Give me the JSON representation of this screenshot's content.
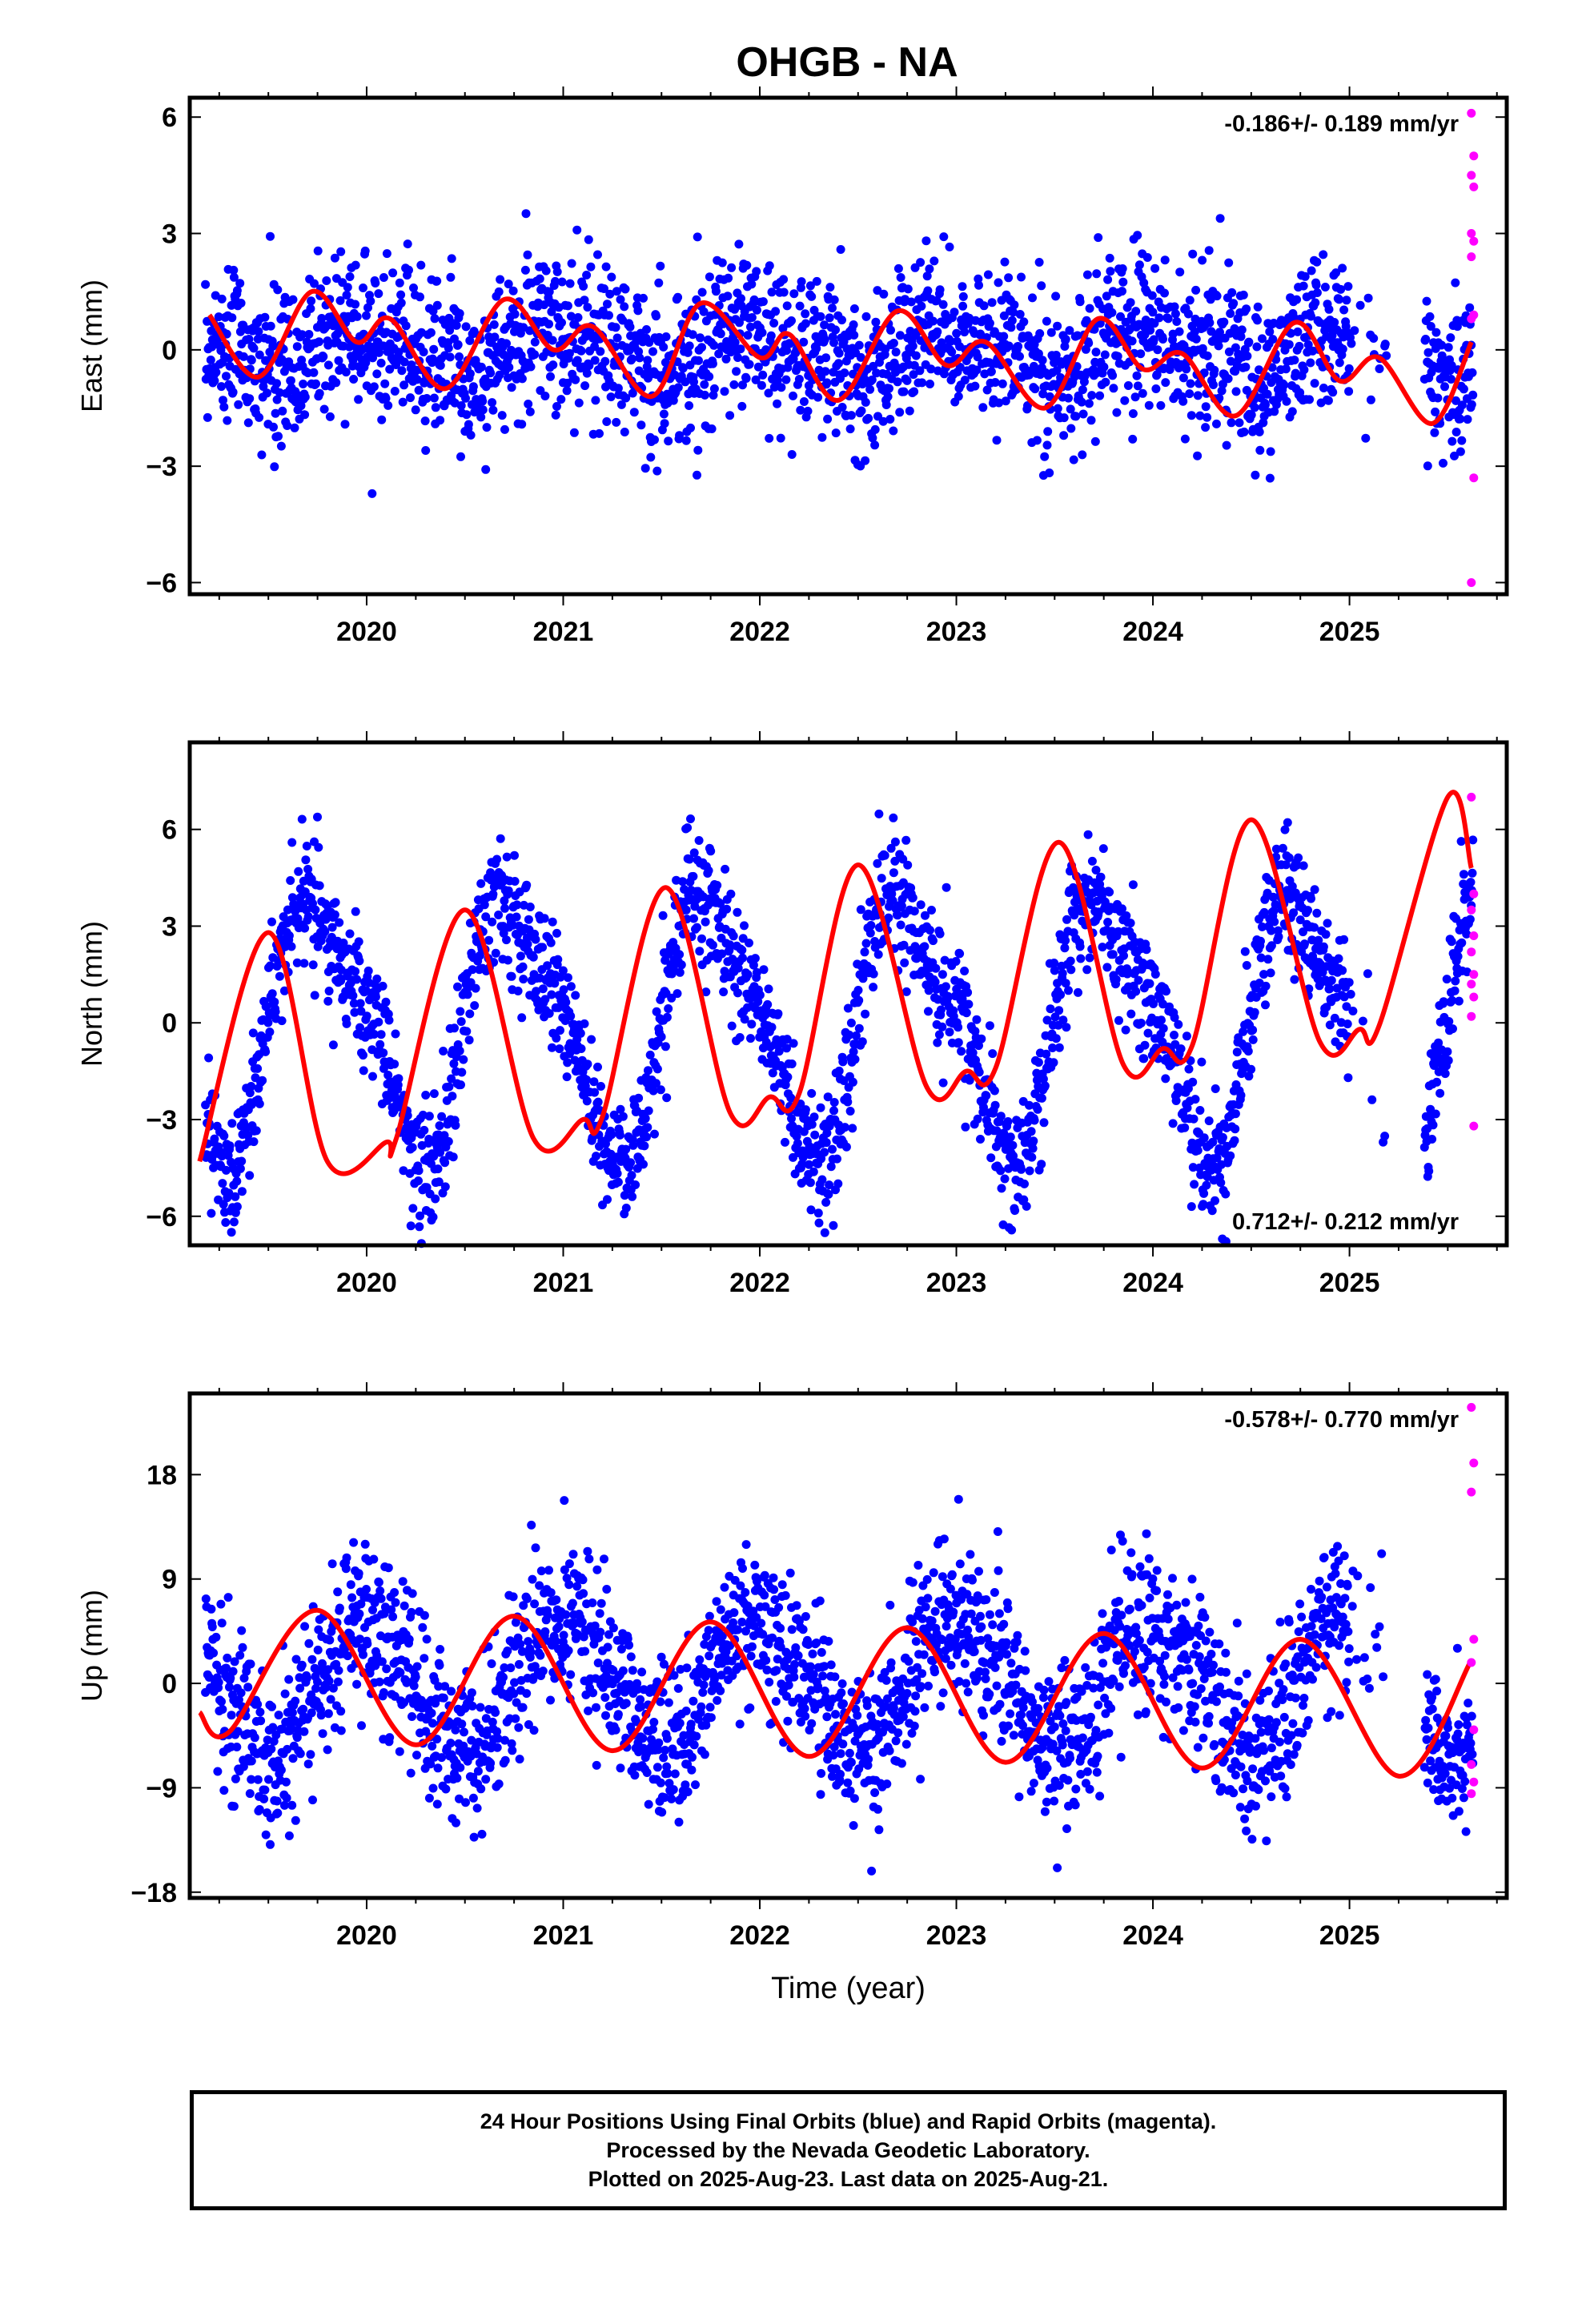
{
  "chart_data": [
    {
      "type": "scatter",
      "title": "OHGB - NA",
      "ylabel": "East (mm)",
      "xlabel": "",
      "xlim": [
        2019.1,
        2025.8
      ],
      "ylim": [
        -6.3,
        6.5
      ],
      "yticks": [
        6,
        3,
        0,
        -3,
        -6
      ],
      "ytick_labels": [
        "6",
        "3",
        "0",
        "−3",
        "−6"
      ],
      "xticks": [
        2020,
        2021,
        2022,
        2023,
        2024,
        2025
      ],
      "xtick_labels": [
        "2020",
        "2021",
        "2022",
        "2023",
        "2024",
        "2025"
      ],
      "annotation": "-0.186+/- 0.189 mm/yr",
      "annotation_pos": "top-right",
      "model": {
        "a1": 0.45,
        "a2": 0.3,
        "ph1": 0.74,
        "ph2": 0.71,
        "scatter_sd": 1.0
      },
      "series": [
        {
          "name": "",
          "kind": "scatter",
          "color": "#0000ff"
        },
        {
          "name": "",
          "kind": "scatter",
          "color": "#ff00ff"
        },
        {
          "name": "",
          "kind": "line",
          "color": "#ff0000"
        }
      ],
      "rapid_points": [
        6.1,
        5.0,
        4.5,
        4.2,
        3.0,
        2.8,
        2.4,
        0.9,
        0.8,
        -3.3,
        -6.0
      ],
      "fit_curve": {
        "x": [
          2019.2,
          2019.45,
          2019.72,
          2019.95,
          2020.12,
          2020.4,
          2020.7,
          2020.95,
          2021.15,
          2021.45,
          2021.7,
          2022.0,
          2022.15,
          2022.4,
          2022.7,
          2022.95,
          2023.15,
          2023.45,
          2023.72,
          2023.95,
          2024.15,
          2024.42,
          2024.72,
          2024.95,
          2025.15,
          2025.42,
          2025.62
        ],
        "y": [
          0.9,
          -0.7,
          1.5,
          0.2,
          0.8,
          -1.0,
          1.3,
          0.0,
          0.6,
          -1.2,
          1.2,
          -0.2,
          0.4,
          -1.3,
          1.0,
          -0.4,
          0.2,
          -1.5,
          0.8,
          -0.5,
          -0.1,
          -1.7,
          0.7,
          -0.8,
          -0.2,
          -1.9,
          0.2
        ]
      }
    },
    {
      "type": "scatter",
      "title": "",
      "ylabel": "North (mm)",
      "xlabel": "",
      "xlim": [
        2019.1,
        2025.8
      ],
      "ylim": [
        -6.9,
        8.7
      ],
      "yticks": [
        6,
        3,
        0,
        -3,
        -6
      ],
      "ytick_labels": [
        "6",
        "3",
        "0",
        "−3",
        "−6"
      ],
      "xticks": [
        2020,
        2021,
        2022,
        2023,
        2024,
        2025
      ],
      "xtick_labels": [
        "2020",
        "2021",
        "2022",
        "2023",
        "2024",
        "2025"
      ],
      "annotation": "0.712+/- 0.212 mm/yr",
      "annotation_pos": "bottom-right",
      "model": {
        "a1": 3.8,
        "a2": 1.0,
        "ph1": 0.5,
        "ph2": 0.47,
        "scatter_sd": 1.0
      },
      "series": [
        {
          "name": "",
          "kind": "scatter",
          "color": "#0000ff"
        },
        {
          "name": "",
          "kind": "scatter",
          "color": "#ff00ff"
        },
        {
          "name": "",
          "kind": "line",
          "color": "#ff0000"
        }
      ],
      "rapid_points": [
        7.0,
        4.0,
        3.5,
        2.7,
        2.2,
        1.5,
        1.2,
        0.8,
        0.2,
        -3.2
      ],
      "fit_curve": {
        "x": [
          2019.15,
          2019.5,
          2019.8,
          2020.1,
          2020.15,
          2020.5,
          2020.85,
          2021.1,
          2021.2,
          2021.52,
          2021.85,
          2022.05,
          2022.2,
          2022.5,
          2022.85,
          2023.05,
          2023.2,
          2023.52,
          2023.85,
          2024.05,
          2024.2,
          2024.5,
          2024.85,
          2025.05,
          2025.15,
          2025.5,
          2025.62
        ],
        "y": [
          -4.3,
          2.8,
          -4.3,
          -3.7,
          -3.6,
          3.5,
          -3.6,
          -3.0,
          -2.9,
          4.2,
          -2.8,
          -2.3,
          -2.2,
          4.9,
          -2.0,
          -1.5,
          -1.4,
          5.6,
          -1.3,
          -0.8,
          -0.7,
          6.3,
          -0.6,
          -0.2,
          -0.1,
          7.0,
          4.8
        ]
      }
    },
    {
      "type": "scatter",
      "title": "",
      "ylabel": "Up (mm)",
      "xlabel": "Time (year)",
      "xlim": [
        2019.1,
        2025.8
      ],
      "ylim": [
        -18.5,
        25.0
      ],
      "yticks": [
        18,
        9,
        0,
        -9,
        -18
      ],
      "ytick_labels": [
        "18",
        "9",
        "0",
        "−9",
        "−18"
      ],
      "xticks": [
        2020,
        2021,
        2022,
        2023,
        2024,
        2025
      ],
      "xtick_labels": [
        "2020",
        "2021",
        "2022",
        "2023",
        "2024",
        "2025"
      ],
      "annotation": "-0.578+/- 0.770 mm/yr",
      "annotation_pos": "top-right",
      "model": {
        "a1": 5.5,
        "a2": 0.6,
        "ph1": 0.75,
        "ph2": 0.7,
        "scatter_sd": 3.5
      },
      "series": [
        {
          "name": "",
          "kind": "scatter",
          "color": "#0000ff"
        },
        {
          "name": "",
          "kind": "scatter",
          "color": "#ff00ff"
        },
        {
          "name": "",
          "kind": "line",
          "color": "#ff0000"
        }
      ],
      "rapid_points": [
        23.8,
        19.0,
        16.5,
        3.8,
        1.8,
        -4.0,
        -7.0,
        -8.5,
        -9.5
      ],
      "fit_curve": {
        "x": [
          2019.15,
          2019.3,
          2019.75,
          2020.25,
          2020.75,
          2021.25,
          2021.75,
          2022.25,
          2022.75,
          2023.25,
          2023.75,
          2024.25,
          2024.75,
          2025.25,
          2025.62
        ],
        "y": [
          -2.5,
          -4.2,
          6.3,
          -5.3,
          5.8,
          -5.8,
          5.3,
          -6.3,
          4.8,
          -6.8,
          4.3,
          -7.3,
          3.8,
          -8.0,
          2.0
        ]
      }
    }
  ],
  "footer": {
    "line1": "24 Hour Positions Using Final Orbits (blue) and Rapid Orbits (magenta).",
    "line2": "Processed by the Nevada Geodetic Laboratory.",
    "line3": "Plotted on 2025-Aug-23. Last data on 2025-Aug-21."
  }
}
